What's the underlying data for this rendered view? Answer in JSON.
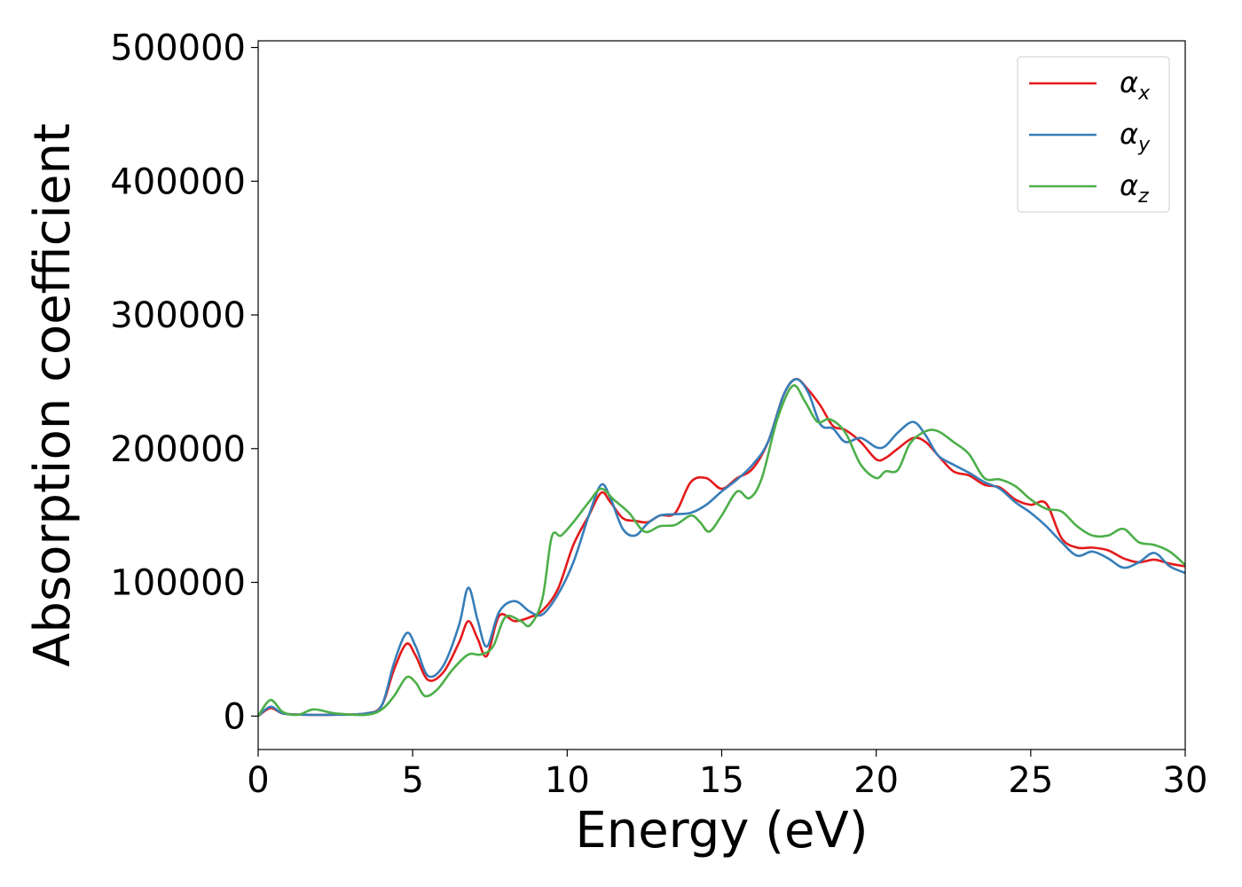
{
  "chart_data": {
    "type": "line",
    "xlabel": "Energy (eV)",
    "ylabel": "Absorption coefficient",
    "xlim": [
      0,
      30
    ],
    "ylim": [
      -25000,
      505000
    ],
    "xticks": [
      "0",
      "5",
      "10",
      "15",
      "20",
      "25",
      "30"
    ],
    "yticks": [
      "0",
      "100000",
      "200000",
      "300000",
      "400000",
      "500000"
    ],
    "grid": false,
    "legend_position": "top-right",
    "series": [
      {
        "name": "α_x",
        "label_base": "α",
        "label_sub": "x",
        "color": "#e41a1c",
        "x": [
          0,
          0.4,
          0.8,
          1.5,
          2.5,
          3.5,
          4.0,
          4.4,
          4.8,
          5.1,
          5.5,
          6.0,
          6.5,
          6.8,
          7.1,
          7.4,
          7.8,
          8.3,
          8.8,
          9.2,
          9.7,
          10.2,
          10.7,
          11.1,
          11.4,
          11.8,
          12.2,
          12.6,
          13.0,
          13.5,
          14.0,
          14.5,
          15.0,
          15.5,
          16.0,
          16.5,
          17.0,
          17.4,
          17.8,
          18.2,
          18.6,
          19.0,
          19.5,
          20.0,
          20.3,
          20.7,
          21.2,
          21.6,
          22.0,
          22.5,
          23.0,
          23.5,
          24.0,
          24.5,
          25.0,
          25.5,
          26.0,
          26.5,
          27.0,
          27.5,
          28.0,
          28.5,
          29.0,
          29.5,
          30.0
        ],
        "y": [
          0,
          6000,
          2000,
          1000,
          1000,
          2000,
          8000,
          35000,
          54000,
          45000,
          27000,
          33000,
          55000,
          71000,
          58000,
          45000,
          75000,
          71000,
          74000,
          79000,
          95000,
          128000,
          150000,
          167000,
          160000,
          148000,
          146000,
          145000,
          150000,
          152000,
          175000,
          178000,
          170000,
          178000,
          185000,
          205000,
          240000,
          252000,
          244000,
          232000,
          217000,
          214000,
          205000,
          192000,
          193000,
          200000,
          208000,
          205000,
          195000,
          183000,
          180000,
          173000,
          171000,
          162000,
          158000,
          159000,
          133000,
          126000,
          126000,
          124000,
          118000,
          115000,
          117000,
          114000,
          112000
        ]
      },
      {
        "name": "α_y",
        "label_base": "α",
        "label_sub": "y",
        "color": "#377eb8",
        "x": [
          0,
          0.4,
          0.8,
          1.5,
          2.5,
          3.5,
          4.0,
          4.4,
          4.8,
          5.1,
          5.5,
          6.0,
          6.5,
          6.8,
          7.1,
          7.4,
          7.8,
          8.3,
          8.8,
          9.2,
          9.7,
          10.2,
          10.7,
          11.1,
          11.4,
          11.8,
          12.2,
          12.6,
          13.0,
          13.5,
          14.0,
          14.5,
          15.0,
          15.5,
          16.0,
          16.5,
          17.0,
          17.4,
          17.8,
          18.2,
          18.6,
          19.0,
          19.5,
          20.0,
          20.3,
          20.7,
          21.2,
          21.6,
          22.0,
          22.5,
          23.0,
          23.5,
          24.0,
          24.5,
          25.0,
          25.5,
          26.0,
          26.5,
          27.0,
          27.5,
          28.0,
          28.5,
          29.0,
          29.5,
          30.0
        ],
        "y": [
          0,
          7000,
          2000,
          1000,
          1000,
          2000,
          8000,
          40000,
          62000,
          52000,
          30000,
          38000,
          68000,
          96000,
          72000,
          52000,
          78000,
          86000,
          78000,
          76000,
          91000,
          115000,
          150000,
          173000,
          163000,
          140000,
          135000,
          144000,
          150000,
          151000,
          152000,
          158000,
          168000,
          177000,
          188000,
          205000,
          240000,
          252000,
          242000,
          218000,
          215000,
          205000,
          208000,
          201000,
          202000,
          212000,
          220000,
          210000,
          195000,
          188000,
          182000,
          175000,
          170000,
          160000,
          152000,
          142000,
          130000,
          120000,
          123000,
          118000,
          111000,
          115000,
          122000,
          112000,
          107000
        ]
      },
      {
        "name": "α_z",
        "label_base": "α",
        "label_sub": "z",
        "color": "#4daf4a",
        "x": [
          0,
          0.4,
          0.8,
          1.3,
          1.8,
          2.5,
          3.5,
          4.0,
          4.4,
          4.8,
          5.1,
          5.4,
          5.8,
          6.3,
          6.8,
          7.2,
          7.6,
          8.0,
          8.5,
          8.8,
          9.2,
          9.5,
          9.8,
          10.2,
          10.7,
          11.1,
          11.5,
          12.0,
          12.5,
          13.0,
          13.5,
          14.0,
          14.3,
          14.6,
          15.0,
          15.5,
          15.9,
          16.3,
          16.8,
          17.3,
          17.7,
          18.1,
          18.5,
          19.0,
          19.5,
          20.0,
          20.3,
          20.7,
          21.1,
          21.6,
          22.0,
          22.5,
          23.0,
          23.5,
          24.0,
          24.5,
          25.0,
          25.5,
          26.0,
          26.5,
          27.0,
          27.5,
          28.0,
          28.5,
          29.0,
          29.5,
          30.0
        ],
        "y": [
          0,
          12000,
          3000,
          1000,
          5000,
          2000,
          1000,
          5000,
          15000,
          29000,
          25000,
          15000,
          20000,
          35000,
          46000,
          46000,
          52000,
          74000,
          71000,
          68000,
          88000,
          134000,
          135000,
          145000,
          160000,
          170000,
          162000,
          152000,
          138000,
          142000,
          143000,
          150000,
          145000,
          138000,
          150000,
          168000,
          163000,
          178000,
          222000,
          247000,
          235000,
          220000,
          222000,
          212000,
          188000,
          178000,
          183000,
          184000,
          204000,
          213000,
          213000,
          205000,
          196000,
          178000,
          177000,
          172000,
          162000,
          155000,
          153000,
          142000,
          135000,
          135000,
          140000,
          130000,
          128000,
          123000,
          113000
        ]
      }
    ]
  }
}
